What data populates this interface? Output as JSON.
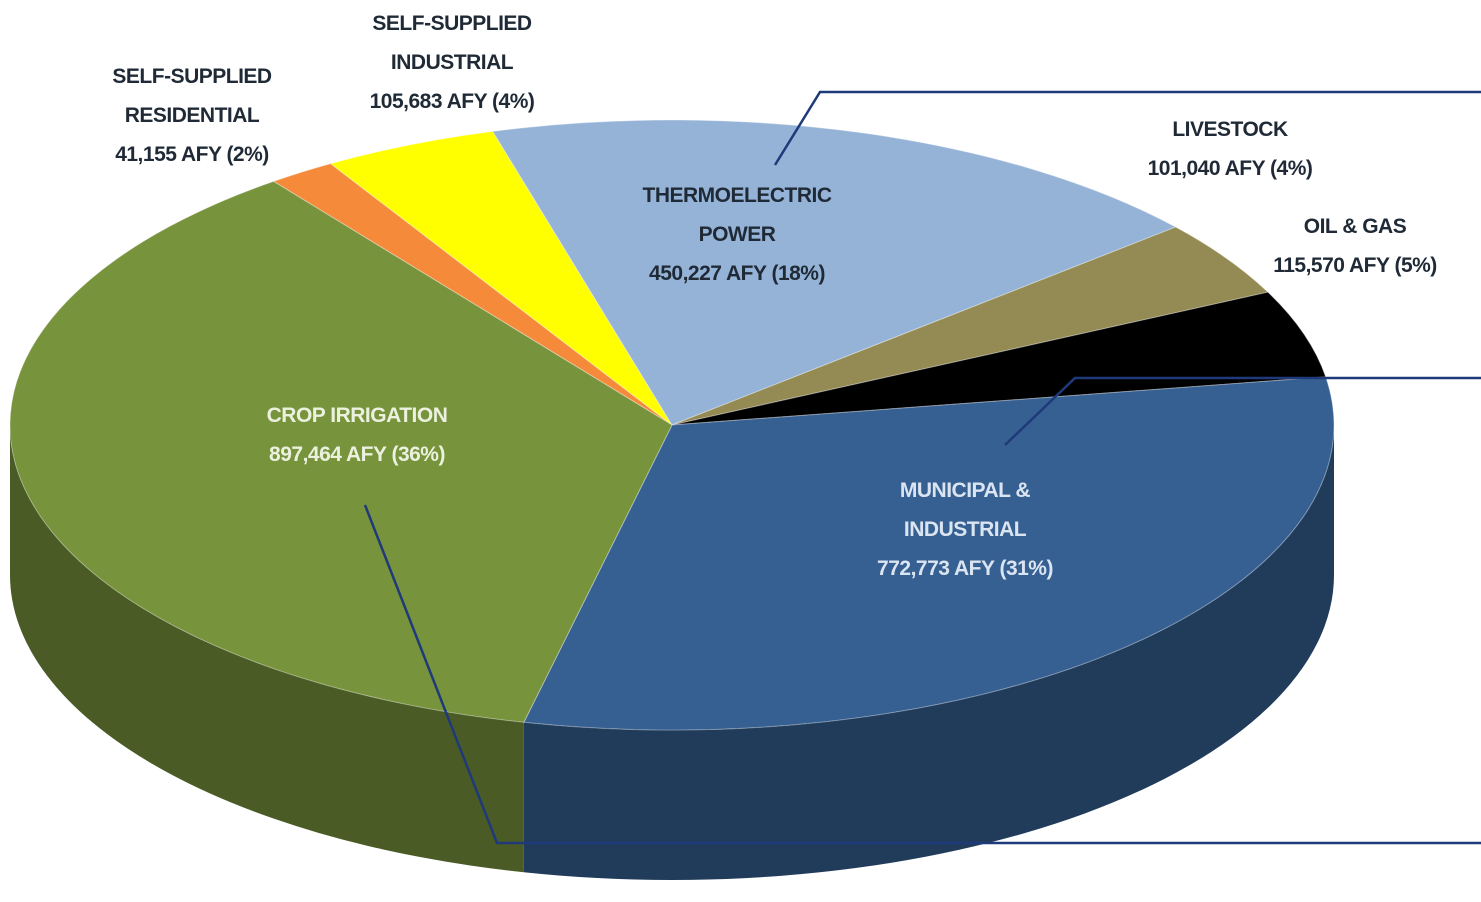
{
  "chart_data": {
    "type": "pie",
    "categories": [
      "SELF-SUPPLIED RESIDENTIAL",
      "SELF-SUPPLIED INDUSTRIAL",
      "THERMOELECTRIC POWER",
      "LIVESTOCK",
      "OIL & GAS",
      "MUNICIPAL & INDUSTRIAL",
      "CROP IRRIGATION"
    ],
    "values": [
      41155,
      105683,
      450227,
      101040,
      115570,
      772773,
      897464
    ],
    "value_labels": [
      "41,155 AFY (2%)",
      "105,683 AFY (4%)",
      "450,227 AFY (18%)",
      "101,040 AFY (4%)",
      "115,570 AFY (5%)",
      "772,773 AFY (31%)",
      "897,464 AFY (36%)"
    ],
    "colors": [
      "#f58a3a",
      "#ffff00",
      "#95b3d7",
      "#948a54",
      "#000000",
      "#366092",
      "#77933c"
    ]
  }
}
